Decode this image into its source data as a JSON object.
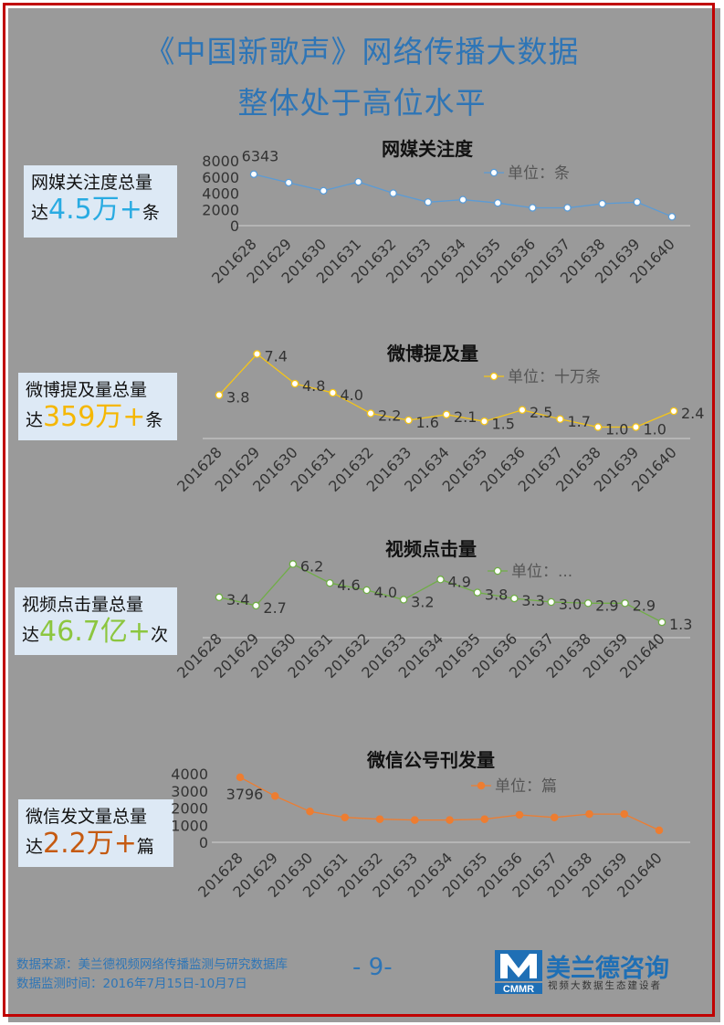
{
  "title": {
    "line1": "《中国新歌声》网络传播大数据",
    "line2": "整体处于高位水平"
  },
  "summaries": [
    {
      "pre": "网媒关注度总量",
      "lead": "达",
      "value": "4.5万",
      "plus": "+",
      "unit": "条",
      "color": "#29abe2"
    },
    {
      "pre": "微博提及量总量",
      "lead": "达",
      "value": "359万",
      "plus": "+",
      "unit": "条",
      "color": "#f5b700"
    },
    {
      "pre": "视频点击量总量",
      "lead": "达",
      "value": "46.7亿",
      "plus": "+",
      "unit": "次",
      "color": "#8cc63f"
    },
    {
      "pre": "微信发文量总量",
      "lead": "达",
      "value": "2.2万",
      "plus": "+",
      "unit": "篇",
      "color": "#c55a11"
    }
  ],
  "chart_data": [
    {
      "type": "line",
      "title": "网媒关注度",
      "categories": [
        "201628",
        "201629",
        "201630",
        "201631",
        "201632",
        "201633",
        "201634",
        "201635",
        "201636",
        "201637",
        "201638",
        "201639",
        "201640"
      ],
      "series": [
        {
          "name": "单位：条",
          "values": [
            6343,
            5300,
            4300,
            5400,
            4000,
            2900,
            3200,
            2800,
            2200,
            2200,
            2700,
            2900,
            1100
          ]
        }
      ],
      "data_labels": [
        {
          "index": 0,
          "text": "6343"
        }
      ],
      "yticks": [
        "8000",
        "6000",
        "4000",
        "2000",
        "0"
      ],
      "ylim": [
        0,
        8000
      ],
      "color": "#5b9bd5",
      "legend": "top-right",
      "grid": false
    },
    {
      "type": "line",
      "title": "微博提及量",
      "categories": [
        "201628",
        "201629",
        "201630",
        "201631",
        "201632",
        "201633",
        "201634",
        "201635",
        "201636",
        "201637",
        "201638",
        "201639",
        "201640"
      ],
      "series": [
        {
          "name": "单位：十万条",
          "values": [
            3.8,
            7.4,
            4.8,
            4.0,
            2.2,
            1.6,
            2.1,
            1.5,
            2.5,
            1.7,
            1.0,
            1.0,
            2.4
          ]
        }
      ],
      "data_labels": [
        {
          "index": 0,
          "text": "3.8"
        },
        {
          "index": 1,
          "text": "7.4"
        },
        {
          "index": 2,
          "text": "4.8"
        },
        {
          "index": 3,
          "text": "4.0"
        },
        {
          "index": 4,
          "text": "2.2"
        },
        {
          "index": 5,
          "text": "1.6"
        },
        {
          "index": 6,
          "text": "2.1"
        },
        {
          "index": 7,
          "text": "1.5"
        },
        {
          "index": 8,
          "text": "2.5"
        },
        {
          "index": 9,
          "text": "1.7"
        },
        {
          "index": 10,
          "text": "1.0"
        },
        {
          "index": 11,
          "text": "1.0"
        },
        {
          "index": 12,
          "text": "2.4"
        }
      ],
      "ylim": [
        0,
        8
      ],
      "color": "#f5c518",
      "legend": "top-right",
      "grid": false
    },
    {
      "type": "line",
      "title": "视频点击量",
      "categories": [
        "201628",
        "201629",
        "201630",
        "201631",
        "201632",
        "201633",
        "201634",
        "201635",
        "201636",
        "201637",
        "201638",
        "201639",
        "201640"
      ],
      "series": [
        {
          "name": "单位：...",
          "values": [
            3.4,
            2.7,
            6.2,
            4.6,
            4.0,
            3.2,
            4.9,
            3.8,
            3.3,
            3.0,
            2.9,
            2.9,
            1.3
          ]
        }
      ],
      "data_labels": [
        {
          "index": 0,
          "text": "3.4"
        },
        {
          "index": 1,
          "text": "2.7"
        },
        {
          "index": 2,
          "text": "6.2"
        },
        {
          "index": 3,
          "text": "4.6"
        },
        {
          "index": 4,
          "text": "4.0"
        },
        {
          "index": 5,
          "text": "3.2"
        },
        {
          "index": 6,
          "text": "4.9"
        },
        {
          "index": 7,
          "text": "3.8"
        },
        {
          "index": 8,
          "text": "3.3"
        },
        {
          "index": 9,
          "text": "3.0"
        },
        {
          "index": 10,
          "text": "2.9"
        },
        {
          "index": 11,
          "text": "2.9"
        },
        {
          "index": 12,
          "text": "1.3"
        }
      ],
      "ylim": [
        0,
        7
      ],
      "color": "#70ad47",
      "legend": "top-right",
      "grid": false
    },
    {
      "type": "line",
      "title": "微信公号刊发量",
      "categories": [
        "201628",
        "201629",
        "201630",
        "201631",
        "201632",
        "201633",
        "201634",
        "201635",
        "201636",
        "201637",
        "201638",
        "201639",
        "201640"
      ],
      "series": [
        {
          "name": "单位：篇",
          "values": [
            3796,
            2700,
            1800,
            1450,
            1350,
            1300,
            1300,
            1350,
            1600,
            1450,
            1650,
            1650,
            700
          ]
        }
      ],
      "data_labels": [
        {
          "index": 0,
          "text": "3796"
        }
      ],
      "yticks": [
        "4000",
        "3000",
        "2000",
        "1000",
        "0"
      ],
      "ylim": [
        0,
        4000
      ],
      "color": "#ed7d31",
      "legend": "top-right",
      "grid": false
    }
  ],
  "footer": {
    "source": "数据来源：美兰德视频网络传播监测与研究数据库",
    "period": "数据监测时间：2016年7月15日-10月7日",
    "page": "- 9-"
  },
  "logo": {
    "name": "美兰德咨询",
    "abbr": "CMMR",
    "tagline": "视频大数据生态建设者",
    "color": "#1f6fb5"
  }
}
